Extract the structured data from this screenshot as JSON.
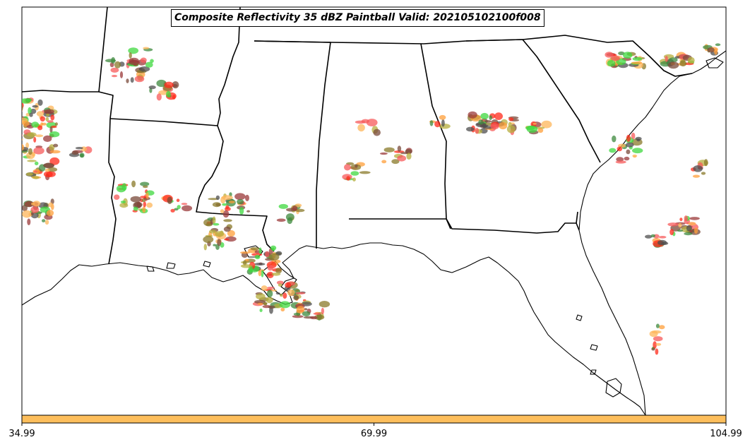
{
  "title": "Composite Reflectivity 35 dBZ Paintball Valid: 202105102100f008",
  "colorbar": {
    "color": "#fdbe5c",
    "ticks": [
      "34.99",
      "69.99",
      "104.99"
    ]
  },
  "colors": {
    "dark_red": "#9b3a3a",
    "red": "#ff2a1a",
    "light_red": "#f75a5a",
    "orange": "#ff9f3a",
    "light_orange": "#fdb65a",
    "olive": "#b5ad3e",
    "olive_dark": "#8a7a2a",
    "green": "#3fd83f",
    "dark_green": "#3d8a3d",
    "gray": "#4f4f4f",
    "brown": "#7a4a3a"
  }
}
